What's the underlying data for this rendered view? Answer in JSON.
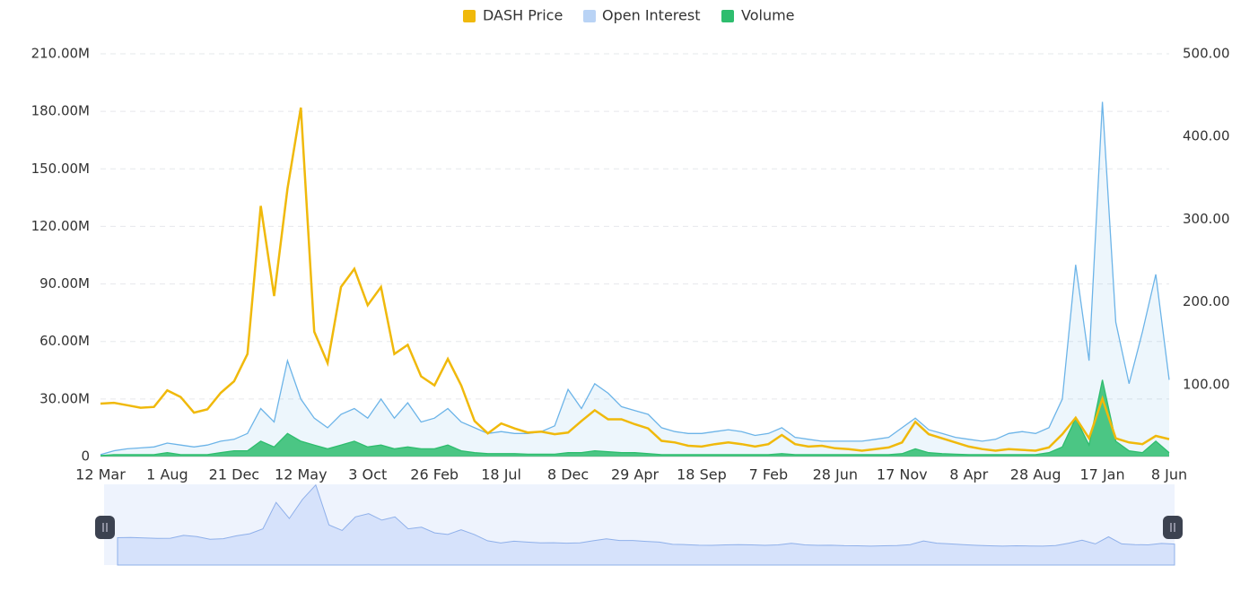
{
  "chart_data": {
    "type": "line",
    "categories": [
      "12 Mar",
      null,
      null,
      null,
      null,
      "1 Aug",
      null,
      null,
      null,
      null,
      "21 Dec",
      null,
      null,
      null,
      null,
      "12 May",
      null,
      null,
      null,
      null,
      "3 Oct",
      null,
      null,
      null,
      null,
      "26 Feb",
      null,
      null,
      null,
      null,
      "18 Jul",
      null,
      null,
      null,
      null,
      "8 Dec",
      null,
      null,
      null,
      null,
      "29 Apr",
      null,
      null,
      null,
      null,
      "18 Sep",
      null,
      null,
      null,
      null,
      "7 Feb",
      null,
      null,
      null,
      null,
      "28 Jun",
      null,
      null,
      null,
      null,
      "17 Nov",
      null,
      null,
      null,
      null,
      "8 Apr",
      null,
      null,
      null,
      null,
      "28 Aug",
      null,
      null,
      null,
      null,
      "17 Jan",
      null,
      null,
      null,
      null,
      "8 Jun"
    ],
    "series": [
      {
        "name": "DASH Price",
        "color": "#f0b90b",
        "axis": "y2",
        "values": [
          77,
          78,
          75,
          72,
          73,
          93,
          85,
          66,
          70,
          90,
          104,
          137,
          316,
          207,
          337,
          435,
          164,
          126,
          218,
          240,
          196,
          218,
          137,
          148,
          110,
          99,
          131,
          99,
          56,
          41,
          53,
          47,
          42,
          43,
          40,
          42,
          56,
          69,
          58,
          58,
          52,
          47,
          32,
          30,
          26,
          25,
          28,
          30,
          28,
          25,
          28,
          39,
          28,
          25,
          26,
          23,
          22,
          20,
          22,
          24,
          30,
          55,
          40,
          35,
          30,
          25,
          22,
          20,
          22,
          21,
          20,
          24,
          40,
          60,
          35,
          83,
          35,
          30,
          28,
          38,
          34
        ]
      },
      {
        "name": "Open Interest",
        "color": "#6cb4e8",
        "values": [
          1000000,
          3000000,
          4000000,
          4500000,
          5000000,
          7000000,
          6000000,
          5000000,
          6000000,
          8000000,
          9000000,
          12000000,
          25000000,
          18000000,
          50000000,
          30000000,
          20000000,
          15000000,
          22000000,
          25000000,
          20000000,
          30000000,
          20000000,
          28000000,
          18000000,
          20000000,
          25000000,
          18000000,
          15000000,
          12000000,
          13000000,
          12000000,
          12000000,
          13000000,
          16000000,
          35000000,
          25000000,
          38000000,
          33000000,
          26000000,
          24000000,
          22000000,
          15000000,
          13000000,
          12000000,
          12000000,
          13000000,
          14000000,
          13000000,
          11000000,
          12000000,
          15000000,
          10000000,
          9000000,
          8000000,
          8000000,
          8000000,
          8000000,
          9000000,
          10000000,
          15000000,
          20000000,
          14000000,
          12000000,
          10000000,
          9000000,
          8000000,
          9000000,
          12000000,
          13000000,
          12000000,
          15000000,
          30000000,
          100000000,
          50000000,
          185000000,
          70000000,
          38000000,
          65000000,
          95000000,
          40000000
        ]
      },
      {
        "name": "Volume",
        "color": "#2ebd6e",
        "values": [
          500000,
          1000000,
          1000000,
          1000000,
          1000000,
          2000000,
          1000000,
          1000000,
          1000000,
          2000000,
          3000000,
          3000000,
          8000000,
          5000000,
          12000000,
          8000000,
          6000000,
          4000000,
          6000000,
          8000000,
          5000000,
          6000000,
          4000000,
          5000000,
          4000000,
          4000000,
          6000000,
          3000000,
          2000000,
          1500000,
          1500000,
          1500000,
          1200000,
          1200000,
          1200000,
          2000000,
          2000000,
          3000000,
          2500000,
          2000000,
          2000000,
          1500000,
          1000000,
          1000000,
          1000000,
          1000000,
          1000000,
          1000000,
          1000000,
          1000000,
          1000000,
          1500000,
          1000000,
          1000000,
          1000000,
          1000000,
          1000000,
          1000000,
          1000000,
          1000000,
          1500000,
          4000000,
          2000000,
          1500000,
          1200000,
          1000000,
          1000000,
          1000000,
          1000000,
          1000000,
          1000000,
          2000000,
          5000000,
          20000000,
          6000000,
          40000000,
          8000000,
          3000000,
          2000000,
          8000000,
          2000000
        ]
      }
    ],
    "ylim": [
      0,
      210000000
    ],
    "yticks": [
      0,
      {
        "value": 30000000,
        "label": "30.00M"
      },
      {
        "value": 60000000,
        "label": "60.00M"
      },
      {
        "value": 90000000,
        "label": "90.00M"
      },
      {
        "value": 120000000,
        "label": "120.00M"
      },
      {
        "value": 150000000,
        "label": "150.00M"
      },
      {
        "value": 180000000,
        "label": "180.00M"
      },
      {
        "value": 210000000,
        "label": "210.00M"
      }
    ],
    "y2lim": [
      13,
      500
    ],
    "y2ticks": [
      {
        "value": 100,
        "label": "100.00"
      },
      {
        "value": 200,
        "label": "200.00"
      },
      {
        "value": 300,
        "label": "300.00"
      },
      {
        "value": 400,
        "label": "400.00"
      },
      {
        "value": 500,
        "label": "500.00"
      }
    ],
    "grid": true,
    "legend": "top"
  }
}
